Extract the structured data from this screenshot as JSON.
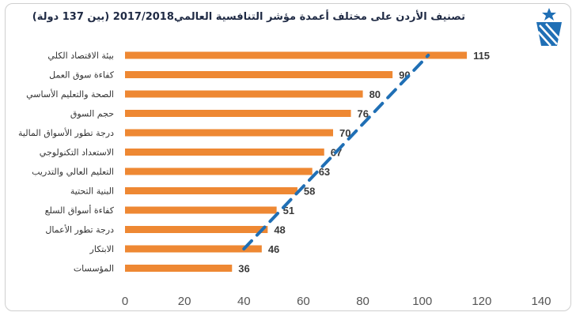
{
  "chart_data": {
    "type": "bar",
    "orientation": "horizontal",
    "title": "تصنيف الأردن على مختلف أعمدة مؤشر التنافسية العالمي2017/2018  (بين 137 دولة)",
    "categories": [
      "بيئة الاقتصاد الكلي",
      "كفاءة سوق العمل",
      "الصحة والتعليم الأساسي",
      "حجم السوق",
      "درجة تطور الأسواق المالية",
      "الاستعداد التكنولوجي",
      "التعليم العالي والتدريب",
      "البنية التحتية",
      "كفاءة أسواق السلع",
      "درجة تطور الأعمال",
      "الابتكار",
      "المؤسسات"
    ],
    "values": [
      115,
      90,
      80,
      76,
      70,
      67,
      63,
      58,
      51,
      48,
      46,
      36
    ],
    "xlim": [
      0,
      140
    ],
    "xticks": [
      0,
      20,
      40,
      60,
      80,
      100,
      120,
      140
    ],
    "grid": false,
    "legend": "none",
    "trendline": {
      "style": "dashed",
      "from_category_index": 10,
      "to_category_index": 0,
      "x_start": 40,
      "x_end": 102
    },
    "colors": {
      "bar": "#ee8833",
      "trend": "#1f6fb5",
      "title": "#1f2a44"
    }
  },
  "logo": {
    "name": "jordan-star-logo"
  }
}
